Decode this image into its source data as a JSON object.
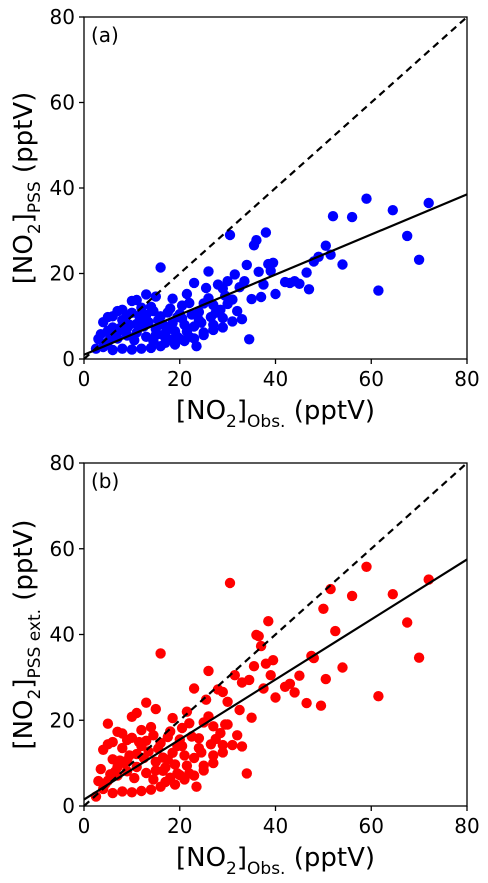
{
  "chart_data": [
    {
      "type": "scatter",
      "panel_label": "(a)",
      "xlabel": {
        "pre": "[NO",
        "sub1": "2",
        "mid": "]",
        "sub2": "Obs.",
        "post": " (pptV)"
      },
      "ylabel": {
        "pre": "[NO",
        "sub1": "2",
        "mid": "]",
        "sub2": "PSS",
        "post": " (pptV)"
      },
      "xlim": [
        0,
        80
      ],
      "ylim": [
        0,
        80
      ],
      "xticks": [
        "0",
        "20",
        "40",
        "60",
        "80"
      ],
      "yticks": [
        "0",
        "20",
        "40",
        "60",
        "80"
      ],
      "color": "#0000ff",
      "one_to_one_line": {
        "style": "dashed",
        "from": [
          0,
          0
        ],
        "to": [
          80,
          80
        ]
      },
      "fit_line": {
        "style": "solid",
        "from": [
          0,
          1.0
        ],
        "to": [
          80,
          38.5
        ]
      },
      "points": [
        [
          72,
          36.5
        ],
        [
          70,
          23.2
        ],
        [
          67.5,
          28.8
        ],
        [
          64.5,
          34.8
        ],
        [
          61.5,
          16.0
        ],
        [
          59,
          37.5
        ],
        [
          56,
          33.2
        ],
        [
          54,
          22.1
        ],
        [
          52,
          33.4
        ],
        [
          51.5,
          24.4
        ],
        [
          50.5,
          26.5
        ],
        [
          49,
          23.9
        ],
        [
          48,
          22.8
        ],
        [
          47,
          16.3
        ],
        [
          46.5,
          20.2
        ],
        [
          45,
          17.6
        ],
        [
          44,
          18.2
        ],
        [
          43,
          17.8
        ],
        [
          42,
          18.0
        ],
        [
          40,
          15.2
        ],
        [
          39.5,
          22.5
        ],
        [
          39,
          20.6
        ],
        [
          38.5,
          22.2
        ],
        [
          38,
          29.6
        ],
        [
          37.5,
          17.4
        ],
        [
          37,
          14.5
        ],
        [
          36.5,
          20.4
        ],
        [
          36,
          27.8
        ],
        [
          35.5,
          26.6
        ],
        [
          34,
          22.0
        ],
        [
          33.5,
          18.2
        ],
        [
          32.5,
          16.8
        ],
        [
          31.5,
          19.8
        ],
        [
          31,
          13.9
        ],
        [
          30.5,
          29.0
        ],
        [
          30,
          18.2
        ],
        [
          29.5,
          14.8
        ],
        [
          29,
          16.5
        ],
        [
          28,
          17.4
        ],
        [
          27.5,
          10.8
        ],
        [
          26,
          20.5
        ],
        [
          25.5,
          16.6
        ],
        [
          25,
          13.0
        ],
        [
          24,
          11.0
        ],
        [
          23,
          17.8
        ],
        [
          22.5,
          10.4
        ],
        [
          21.5,
          15.2
        ],
        [
          20.5,
          12.5
        ],
        [
          19.5,
          9.8
        ],
        [
          18.5,
          14.1
        ],
        [
          17.5,
          10.9
        ],
        [
          16,
          21.4
        ],
        [
          16.5,
          8.0
        ],
        [
          15,
          14.6
        ],
        [
          14,
          12.2
        ],
        [
          13,
          15.1
        ],
        [
          12,
          8.9
        ],
        [
          11,
          13.8
        ],
        [
          10,
          13.6
        ],
        [
          9,
          10.2
        ],
        [
          8,
          9.1
        ],
        [
          7,
          11.2
        ],
        [
          6,
          10.0
        ],
        [
          5,
          6.6
        ],
        [
          4,
          8.6
        ],
        [
          3,
          4.7
        ],
        [
          2.5,
          2.4
        ],
        [
          34.5,
          4.6
        ],
        [
          33,
          9.3
        ],
        [
          31,
          8.8
        ],
        [
          29,
          7.4
        ],
        [
          27,
          8.0
        ],
        [
          25,
          6.2
        ],
        [
          23.5,
          3.0
        ],
        [
          22,
          5.2
        ],
        [
          20,
          4.7
        ],
        [
          18,
          4.5
        ],
        [
          16,
          3.0
        ],
        [
          14,
          2.6
        ],
        [
          12,
          2.4
        ],
        [
          10,
          2.2
        ],
        [
          8,
          2.4
        ],
        [
          6,
          2.1
        ],
        [
          4,
          2.8
        ],
        [
          27,
          12.6
        ],
        [
          24,
          9.1
        ],
        [
          21,
          8.0
        ],
        [
          19,
          6.5
        ],
        [
          17,
          6.0
        ],
        [
          15,
          7.0
        ],
        [
          13,
          5.2
        ],
        [
          11,
          6.2
        ],
        [
          9,
          5.5
        ],
        [
          7,
          4.8
        ],
        [
          5,
          4.0
        ],
        [
          3.5,
          5.8
        ],
        [
          26.5,
          9.8
        ],
        [
          23,
          7.6
        ],
        [
          20.5,
          9.5
        ],
        [
          18.5,
          8.4
        ],
        [
          16.5,
          5.6
        ],
        [
          14.5,
          4.2
        ],
        [
          12.5,
          7.6
        ],
        [
          10.5,
          4.4
        ],
        [
          8.5,
          6.8
        ],
        [
          6.5,
          5.4
        ],
        [
          4.5,
          3.5
        ],
        [
          21.5,
          6.4
        ],
        [
          19.5,
          5.2
        ],
        [
          17.5,
          7.4
        ],
        [
          15.5,
          9.1
        ],
        [
          13.5,
          8.6
        ],
        [
          11.5,
          10.1
        ],
        [
          9.5,
          8.0
        ],
        [
          7.5,
          7.2
        ],
        [
          5.5,
          5.0
        ],
        [
          28.5,
          11.5
        ],
        [
          30,
          12.9
        ],
        [
          32,
          11.2
        ],
        [
          35,
          14.0
        ],
        [
          22,
          13.1
        ],
        [
          24.5,
          8.5
        ],
        [
          26,
          14.2
        ],
        [
          14.5,
          11.2
        ],
        [
          12,
          12.0
        ],
        [
          10,
          10.8
        ],
        [
          18,
          11.8
        ],
        [
          20,
          10.5
        ],
        [
          16,
          10.0
        ],
        [
          13,
          10.3
        ],
        [
          11,
          8.2
        ],
        [
          9,
          7.2
        ],
        [
          8,
          11.5
        ],
        [
          6,
          7.4
        ],
        [
          5,
          9.8
        ],
        [
          7,
          6.2
        ],
        [
          15,
          5.6
        ],
        [
          17,
          3.8
        ],
        [
          19,
          3.4
        ],
        [
          21,
          4.2
        ],
        [
          23,
          4.8
        ],
        [
          25,
          5.6
        ],
        [
          27,
          6.8
        ],
        [
          29,
          9.6
        ]
      ]
    },
    {
      "type": "scatter",
      "panel_label": "(b)",
      "xlabel": {
        "pre": "[NO",
        "sub1": "2",
        "mid": "]",
        "sub2": "Obs.",
        "post": " (pptV)"
      },
      "ylabel": {
        "pre": "[NO",
        "sub1": "2",
        "mid": "]",
        "sub2": "PSS ext.",
        "post": " (pptV)"
      },
      "xlim": [
        0,
        80
      ],
      "ylim": [
        0,
        80
      ],
      "xticks": [
        "0",
        "20",
        "40",
        "60",
        "80"
      ],
      "yticks": [
        "0",
        "20",
        "40",
        "60",
        "80"
      ],
      "color": "#ff0000",
      "one_to_one_line": {
        "style": "dashed",
        "from": [
          0,
          0
        ],
        "to": [
          80,
          80
        ]
      },
      "fit_line": {
        "style": "solid",
        "from": [
          0,
          1.5
        ],
        "to": [
          80,
          57.5
        ]
      },
      "points": [
        [
          72,
          52.8
        ],
        [
          70,
          34.6
        ],
        [
          67.5,
          42.8
        ],
        [
          64.5,
          49.4
        ],
        [
          61.5,
          25.6
        ],
        [
          59,
          55.8
        ],
        [
          56,
          49.0
        ],
        [
          54,
          32.3
        ],
        [
          52.5,
          40.8
        ],
        [
          51.5,
          50.6
        ],
        [
          50.5,
          29.6
        ],
        [
          50,
          46.0
        ],
        [
          49.5,
          23.4
        ],
        [
          48,
          34.5
        ],
        [
          47.5,
          35.0
        ],
        [
          46.5,
          24.0
        ],
        [
          45,
          30.4
        ],
        [
          44,
          26.5
        ],
        [
          43,
          28.5
        ],
        [
          42,
          27.8
        ],
        [
          40,
          25.3
        ],
        [
          39.5,
          34.0
        ],
        [
          39,
          30.5
        ],
        [
          38.5,
          43.1
        ],
        [
          38,
          33.2
        ],
        [
          37.5,
          27.4
        ],
        [
          37,
          37.3
        ],
        [
          36.5,
          39.6
        ],
        [
          36,
          39.9
        ],
        [
          35.5,
          32.6
        ],
        [
          34,
          7.6
        ],
        [
          34.5,
          29.4
        ],
        [
          33,
          28.8
        ],
        [
          32.5,
          22.4
        ],
        [
          31.5,
          30.5
        ],
        [
          30.5,
          52.0
        ],
        [
          30,
          24.3
        ],
        [
          29.5,
          19.0
        ],
        [
          29,
          26.6
        ],
        [
          28,
          27.2
        ],
        [
          27.5,
          15.6
        ],
        [
          26,
          31.5
        ],
        [
          25.5,
          24.8
        ],
        [
          25,
          19.5
        ],
        [
          24,
          15.8
        ],
        [
          23,
          27.4
        ],
        [
          22.5,
          16.2
        ],
        [
          21.5,
          22.0
        ],
        [
          20.5,
          18.2
        ],
        [
          19.5,
          14.0
        ],
        [
          18.5,
          20.5
        ],
        [
          17.5,
          16.1
        ],
        [
          16,
          35.6
        ],
        [
          16.5,
          11.3
        ],
        [
          15,
          22.6
        ],
        [
          14,
          18.4
        ],
        [
          13,
          24.1
        ],
        [
          12,
          14.0
        ],
        [
          11,
          21.7
        ],
        [
          10,
          20.8
        ],
        [
          9,
          15.4
        ],
        [
          8,
          13.5
        ],
        [
          7,
          17.3
        ],
        [
          6,
          14.9
        ],
        [
          5,
          19.2
        ],
        [
          4,
          13.1
        ],
        [
          3,
          5.8
        ],
        [
          2.5,
          2.2
        ],
        [
          33,
          13.9
        ],
        [
          31,
          14.2
        ],
        [
          29,
          12.5
        ],
        [
          27,
          11.8
        ],
        [
          25,
          9.4
        ],
        [
          23.5,
          4.5
        ],
        [
          22,
          7.6
        ],
        [
          20,
          7.2
        ],
        [
          18,
          6.6
        ],
        [
          16,
          4.5
        ],
        [
          14,
          3.8
        ],
        [
          12,
          3.5
        ],
        [
          10,
          3.2
        ],
        [
          8,
          3.4
        ],
        [
          6,
          3.0
        ],
        [
          4,
          4.0
        ],
        [
          27,
          18.6
        ],
        [
          24,
          13.5
        ],
        [
          21,
          11.8
        ],
        [
          19,
          9.7
        ],
        [
          17,
          9.0
        ],
        [
          15,
          10.3
        ],
        [
          13,
          7.7
        ],
        [
          11,
          9.1
        ],
        [
          9,
          8.1
        ],
        [
          7,
          7.1
        ],
        [
          5,
          5.9
        ],
        [
          3.5,
          8.6
        ],
        [
          26.5,
          14.4
        ],
        [
          23,
          11.2
        ],
        [
          20.5,
          14.0
        ],
        [
          18.5,
          12.4
        ],
        [
          16.5,
          8.2
        ],
        [
          14.5,
          6.2
        ],
        [
          12.5,
          11.2
        ],
        [
          10.5,
          6.5
        ],
        [
          8.5,
          10.0
        ],
        [
          6.5,
          8.0
        ],
        [
          4.5,
          5.2
        ],
        [
          21.5,
          9.4
        ],
        [
          19.5,
          7.6
        ],
        [
          17.5,
          10.8
        ],
        [
          15.5,
          13.4
        ],
        [
          13.5,
          12.7
        ],
        [
          11.5,
          14.9
        ],
        [
          9.5,
          11.8
        ],
        [
          7.5,
          10.6
        ],
        [
          5.5,
          7.4
        ],
        [
          28.5,
          17.0
        ],
        [
          30,
          19.0
        ],
        [
          32,
          16.5
        ],
        [
          35,
          20.6
        ],
        [
          22,
          19.3
        ],
        [
          24.5,
          12.5
        ],
        [
          26,
          20.9
        ],
        [
          14.5,
          16.5
        ],
        [
          12,
          17.7
        ],
        [
          10,
          15.9
        ],
        [
          18,
          17.4
        ],
        [
          20,
          15.5
        ],
        [
          16,
          14.7
        ],
        [
          13,
          15.2
        ],
        [
          11,
          12.1
        ],
        [
          9,
          10.6
        ],
        [
          8,
          16.9
        ],
        [
          6,
          10.9
        ],
        [
          5,
          14.4
        ],
        [
          7,
          9.1
        ],
        [
          15,
          8.3
        ],
        [
          17,
          5.6
        ],
        [
          19,
          5.0
        ],
        [
          21,
          6.2
        ],
        [
          23,
          7.1
        ],
        [
          25,
          8.3
        ],
        [
          27,
          10.0
        ],
        [
          29,
          14.2
        ]
      ]
    }
  ]
}
